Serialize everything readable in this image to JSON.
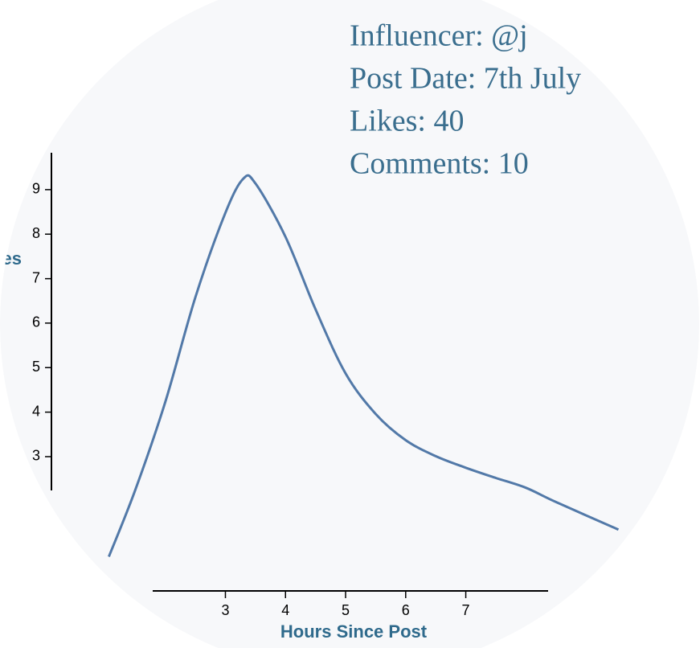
{
  "chart_data": {
    "type": "line",
    "annotations": [
      "Influencer: @j",
      "Post Date: 7th July",
      "Likes: 40",
      "Comments: 10"
    ],
    "ylabel": "Likes",
    "xlabel": "Hours Since Post",
    "x": [
      1.06,
      1.5,
      2,
      2.5,
      3,
      3.3,
      3.5,
      4,
      4.5,
      5,
      5.5,
      6,
      6.5,
      7,
      7.5,
      8,
      8.5,
      9.54
    ],
    "series": [
      {
        "name": "Likes",
        "color": "#5279a8",
        "values": [
          0.75,
          2.25,
          4.23,
          6.58,
          8.48,
          9.25,
          9.14,
          7.94,
          6.31,
          4.87,
          3.96,
          3.37,
          3.01,
          2.75,
          2.52,
          2.3,
          1.98,
          1.36
        ]
      }
    ],
    "xlim": [
      1.79,
      8.37
    ],
    "ylim": [
      2.24,
      9.83
    ],
    "xticks": [
      3,
      4,
      5,
      6,
      7
    ],
    "yticks": [
      3,
      4,
      5,
      6,
      7,
      8,
      9
    ]
  }
}
